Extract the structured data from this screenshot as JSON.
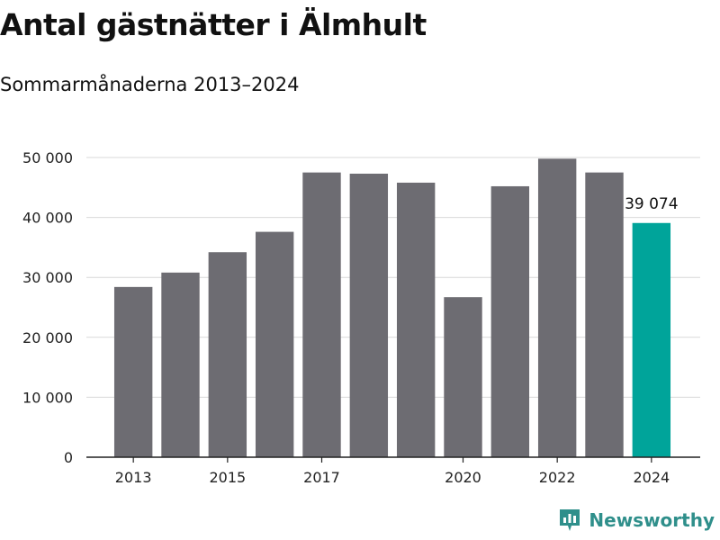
{
  "chart_data": {
    "type": "bar",
    "title": "Antal gästnätter i Älmhult",
    "subtitle": "Sommarmånaderna 2013–2024",
    "categories": [
      "2013",
      "2014",
      "2015",
      "2016",
      "2017",
      "2018",
      "2019",
      "2020",
      "2021",
      "2022",
      "2023",
      "2024"
    ],
    "values": [
      28400,
      30800,
      34200,
      37600,
      47500,
      47300,
      45800,
      26700,
      45200,
      49800,
      47500,
      39074
    ],
    "x_tick_labels": [
      "2013",
      "2015",
      "2017",
      "2020",
      "2022",
      "2024"
    ],
    "y_ticks": [
      0,
      10000,
      20000,
      30000,
      40000,
      50000
    ],
    "y_tick_labels": [
      "0",
      "10 000",
      "20 000",
      "30 000",
      "40 000",
      "50 000"
    ],
    "ylim": [
      0,
      50000
    ],
    "xlabel": "",
    "ylabel": "",
    "highlight_index": 11,
    "highlight_label": "39 074",
    "grid": true,
    "colors": {
      "bar": "#6d6c72",
      "highlight": "#00a49a",
      "grid": "#d9d9d9",
      "axis": "#222222"
    }
  },
  "logo": {
    "text": "Newsworthy",
    "color": "#2f8f8b",
    "icon": "newsworthy-chart-icon"
  }
}
